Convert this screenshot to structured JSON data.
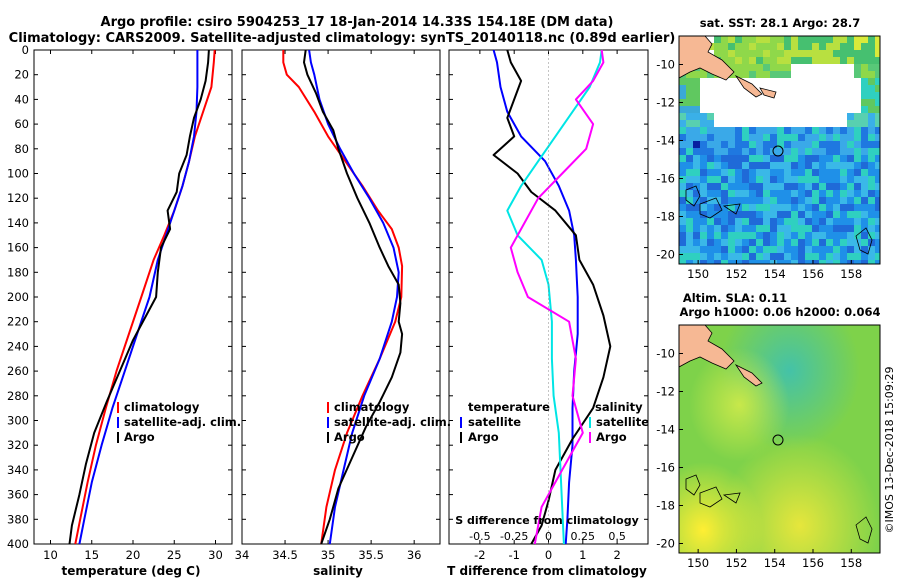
{
  "header": {
    "title_line1": "Argo profile: csiro 5904253_17 18-Jan-2014 14.33S 154.18E (DM data)",
    "title_line2": "Climatology: CARS2009. Satellite-adjusted climatology: synTS_20140118.nc (0.89d earlier)"
  },
  "colors": {
    "climatology": "#ff0000",
    "satellite": "#0000ff",
    "argo": "#000000",
    "salinity_diff": "#ff00ff",
    "salinity_sat": "#00e5e5"
  },
  "chart_data": [
    {
      "type": "line",
      "id": "temperature",
      "xlabel": "temperature (deg C)",
      "xlim": [
        8,
        32
      ],
      "xticks": [
        10,
        15,
        20,
        25,
        30
      ],
      "ylim": [
        400,
        0
      ],
      "yticks": [
        0,
        20,
        40,
        60,
        80,
        100,
        120,
        140,
        160,
        180,
        200,
        220,
        240,
        260,
        280,
        300,
        320,
        340,
        360,
        380,
        400
      ],
      "legend": [
        "climatology",
        "satellite-adj. clim.",
        "Argo"
      ],
      "series": [
        {
          "name": "climatology",
          "color": "#ff0000",
          "x": [
            29.9,
            29.8,
            29.5,
            28.5,
            27.5,
            26.8,
            26.0,
            25.0,
            23.8,
            22.5,
            21.0,
            19.5,
            18.0,
            16.7,
            15.5,
            14.5,
            13.6,
            13.0
          ],
          "depth": [
            0,
            10,
            30,
            50,
            70,
            90,
            110,
            130,
            150,
            170,
            200,
            230,
            260,
            290,
            320,
            350,
            380,
            400
          ]
        },
        {
          "name": "satellite-adj. clim.",
          "color": "#0000ff",
          "x": [
            27.8,
            27.8,
            27.8,
            27.7,
            27.4,
            26.8,
            26.0,
            25.0,
            24.0,
            23.0,
            22.0,
            20.5,
            19.0,
            17.5,
            16.2,
            15.0,
            14.1,
            13.5
          ],
          "depth": [
            0,
            10,
            30,
            50,
            70,
            90,
            110,
            130,
            150,
            170,
            200,
            230,
            260,
            290,
            320,
            350,
            380,
            400
          ]
        },
        {
          "name": "Argo",
          "color": "#000000",
          "x": [
            29.2,
            29.1,
            28.8,
            28.2,
            27.4,
            26.9,
            26.5,
            25.6,
            25.3,
            24.2,
            24.5,
            23.4,
            23.0,
            22.8,
            21.6,
            20.0,
            18.4,
            16.8,
            15.3,
            14.3,
            13.5,
            12.6,
            12.3
          ],
          "depth": [
            0,
            10,
            25,
            40,
            55,
            70,
            85,
            100,
            115,
            130,
            145,
            160,
            180,
            200,
            215,
            235,
            260,
            285,
            310,
            335,
            360,
            385,
            400
          ]
        }
      ]
    },
    {
      "type": "line",
      "id": "salinity",
      "xlabel": "salinity",
      "xlim": [
        34,
        36.3
      ],
      "xticks": [
        34,
        34.5,
        35,
        35.5,
        36
      ],
      "ylim": [
        400,
        0
      ],
      "legend": [
        "climatology",
        "satellite-adj. clim.",
        "Argo"
      ],
      "series": [
        {
          "name": "climatology",
          "color": "#ff0000",
          "x": [
            34.48,
            34.48,
            34.52,
            34.66,
            34.84,
            35.0,
            35.2,
            35.4,
            35.58,
            35.74,
            35.82,
            35.86,
            35.85,
            35.78,
            35.6,
            35.4,
            35.22,
            35.08,
            34.98,
            34.92
          ],
          "depth": [
            0,
            10,
            20,
            30,
            50,
            70,
            90,
            110,
            130,
            145,
            160,
            175,
            200,
            220,
            250,
            280,
            310,
            340,
            370,
            400
          ]
        },
        {
          "name": "satellite-adj. clim.",
          "color": "#0000ff",
          "x": [
            34.78,
            34.8,
            34.84,
            34.9,
            35.0,
            35.14,
            35.3,
            35.48,
            35.64,
            35.76,
            35.82,
            35.8,
            35.74,
            35.6,
            35.42,
            35.28,
            35.18,
            35.08,
            35.02
          ],
          "depth": [
            0,
            10,
            20,
            40,
            60,
            80,
            100,
            120,
            140,
            160,
            180,
            200,
            220,
            250,
            280,
            310,
            340,
            370,
            400
          ]
        },
        {
          "name": "Argo",
          "color": "#000000",
          "x": [
            34.74,
            34.72,
            34.76,
            34.86,
            34.94,
            35.06,
            35.12,
            35.22,
            35.34,
            35.48,
            35.6,
            35.7,
            35.82,
            35.84,
            35.82,
            35.86,
            35.84,
            35.74,
            35.6,
            35.44,
            35.28,
            35.12,
            35.02,
            34.92
          ],
          "depth": [
            0,
            10,
            20,
            35,
            50,
            65,
            80,
            100,
            120,
            140,
            160,
            175,
            190,
            205,
            220,
            230,
            245,
            265,
            285,
            305,
            330,
            355,
            380,
            400
          ]
        }
      ]
    },
    {
      "type": "line",
      "id": "difference",
      "xlabel": "T difference from climatology",
      "xlim": [
        -2.9,
        2.9
      ],
      "xticks": [
        -2,
        -1,
        0,
        1,
        2
      ],
      "x2label": "S difference from climatology",
      "x2ticks": [
        "-0.5",
        "-0.25",
        "0",
        "0.25",
        "0.5"
      ],
      "ylim": [
        400,
        0
      ],
      "legend_left_title": "temperature",
      "legend_right_title": "salinity",
      "legend_items": [
        "satellite",
        "Argo"
      ],
      "series": [
        {
          "name": "T satellite",
          "color": "#0000ff",
          "x": [
            -1.6,
            -1.5,
            -1.4,
            -1.2,
            -0.8,
            -0.1,
            0.3,
            0.6,
            0.75,
            0.8,
            0.85,
            0.85,
            0.75,
            0.7,
            0.7,
            0.6,
            0.55,
            0.5,
            0.5,
            0.5
          ],
          "depth": [
            0,
            10,
            30,
            50,
            70,
            90,
            110,
            130,
            150,
            170,
            200,
            230,
            260,
            290,
            320,
            350,
            380,
            400,
            400,
            400
          ]
        },
        {
          "name": "T Argo",
          "color": "#000000",
          "x": [
            -1.2,
            -1.1,
            -0.8,
            -1.0,
            -1.2,
            -1.0,
            -1.6,
            -0.9,
            -0.5,
            0.2,
            0.8,
            0.9,
            1.3,
            1.6,
            1.8,
            1.6,
            1.3,
            0.7,
            0.2,
            0.0,
            -0.2,
            -0.5
          ],
          "depth": [
            0,
            10,
            25,
            40,
            55,
            70,
            85,
            100,
            115,
            130,
            150,
            170,
            190,
            215,
            240,
            265,
            290,
            315,
            340,
            365,
            385,
            400
          ]
        },
        {
          "name": "S satellite",
          "color": "#00e5e5",
          "x": [
            1.55,
            1.5,
            1.2,
            0.7,
            0.2,
            -0.3,
            -0.8,
            -1.2,
            -0.9,
            -0.2,
            0.0,
            0.1,
            0.1,
            0.15,
            0.3,
            0.35,
            0.4,
            0.45,
            0.45
          ],
          "depth": [
            0,
            10,
            30,
            50,
            70,
            90,
            110,
            130,
            150,
            170,
            190,
            220,
            250,
            280,
            310,
            340,
            370,
            400,
            400
          ]
        },
        {
          "name": "S Argo",
          "color": "#ff00ff",
          "x": [
            1.55,
            1.6,
            1.3,
            0.8,
            1.3,
            1.1,
            0.4,
            -0.3,
            -0.7,
            -1.1,
            -0.9,
            -0.6,
            0.6,
            0.8,
            0.7,
            1.0,
            0.4,
            -0.2,
            -0.4
          ],
          "depth": [
            0,
            10,
            25,
            40,
            60,
            80,
            100,
            120,
            140,
            160,
            180,
            200,
            220,
            250,
            280,
            310,
            340,
            370,
            400
          ]
        }
      ]
    },
    {
      "type": "heatmap",
      "id": "sst_map",
      "title": "sat. SST: 28.1 Argo: 28.7",
      "xticks": [
        "150",
        "152",
        "154",
        "156",
        "158"
      ],
      "yticks": [
        "-10",
        "-12",
        "-14",
        "-16",
        "-18",
        "-20"
      ],
      "xlim": [
        149,
        159.5
      ],
      "ylim": [
        -20.5,
        -8.5
      ],
      "marker": {
        "lon": 154.18,
        "lat": -14.33
      }
    },
    {
      "type": "heatmap",
      "id": "sla_map",
      "title_line1": "Altim. SLA: 0.11",
      "title_line2": "Argo h1000: 0.06 h2000: 0.064",
      "xticks": [
        "150",
        "152",
        "154",
        "156",
        "158"
      ],
      "yticks": [
        "-10",
        "-12",
        "-14",
        "-16",
        "-18",
        "-20"
      ],
      "xlim": [
        149,
        159.5
      ],
      "ylim": [
        -20.5,
        -8.5
      ],
      "marker": {
        "lon": 154.18,
        "lat": -14.33
      }
    }
  ],
  "footer": {
    "credit": "©IMOS 13-Dec-2018 15:09:29"
  }
}
